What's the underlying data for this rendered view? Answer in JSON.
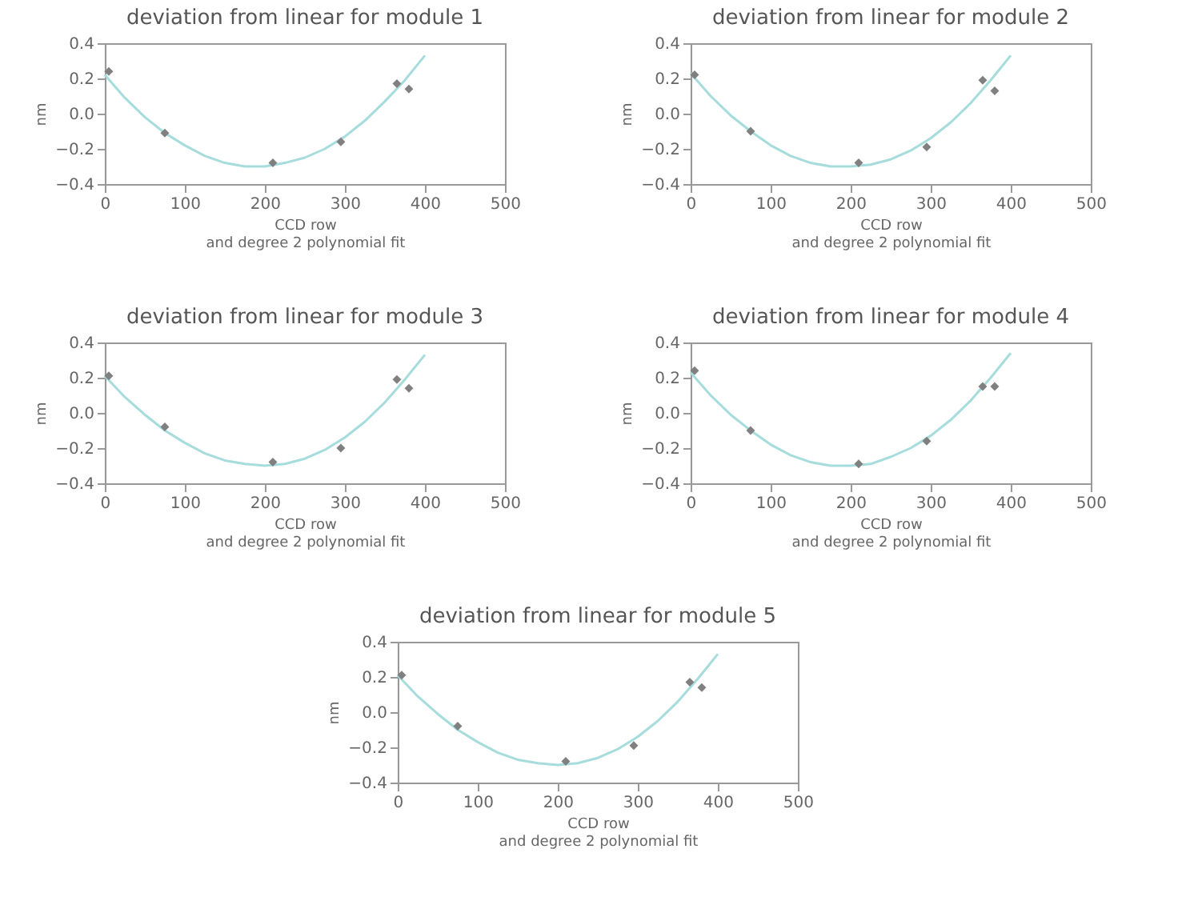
{
  "chart_data": [
    {
      "type": "scatter",
      "title": "deviation from linear for module 1",
      "xlabel": "CCD row\nand degree 2 polynomial fit",
      "ylabel": "nm",
      "grid": false,
      "xlim": [
        0,
        500
      ],
      "xticks": [
        0,
        100,
        200,
        300,
        400,
        500
      ],
      "ylim": [
        -0.4,
        0.4
      ],
      "yticks": [
        {
          "value": -0.4,
          "label": "−0.4"
        },
        {
          "value": -0.2,
          "label": "−0.2"
        },
        {
          "value": 0,
          "label": "0.0"
        },
        {
          "value": 0.2,
          "label": "0.2"
        },
        {
          "value": 0.4,
          "label": "0.4"
        }
      ],
      "series": [
        {
          "marker": "diamond",
          "color": "#808080",
          "x": [
            5,
            75,
            210,
            295,
            365,
            380
          ],
          "values": [
            0.24,
            -0.11,
            -0.28,
            -0.16,
            0.17,
            0.14
          ]
        },
        {
          "type": "line",
          "color": "#a6dcdc",
          "x": [
            0,
            25,
            50,
            75,
            100,
            125,
            150,
            175,
            200,
            225,
            250,
            275,
            300,
            325,
            350,
            375,
            400
          ],
          "values": [
            0.22,
            0.09,
            -0.02,
            -0.11,
            -0.18,
            -0.24,
            -0.28,
            -0.3,
            -0.3,
            -0.28,
            -0.25,
            -0.2,
            -0.13,
            -0.04,
            0.07,
            0.19,
            0.33
          ]
        }
      ]
    },
    {
      "type": "scatter",
      "title": "deviation from linear for module 2",
      "xlabel": "CCD row\nand degree 2 polynomial fit",
      "ylabel": "nm",
      "grid": false,
      "xlim": [
        0,
        500
      ],
      "xticks": [
        0,
        100,
        200,
        300,
        400,
        500
      ],
      "ylim": [
        -0.4,
        0.4
      ],
      "yticks": [
        {
          "value": -0.4,
          "label": "−0.4"
        },
        {
          "value": -0.2,
          "label": "−0.2"
        },
        {
          "value": 0,
          "label": "0.0"
        },
        {
          "value": 0.2,
          "label": "0.2"
        },
        {
          "value": 0.4,
          "label": "0.4"
        }
      ],
      "series": [
        {
          "marker": "diamond",
          "color": "#808080",
          "x": [
            5,
            75,
            210,
            295,
            365,
            380
          ],
          "values": [
            0.22,
            -0.1,
            -0.28,
            -0.19,
            0.19,
            0.13
          ]
        },
        {
          "type": "line",
          "color": "#a6dcdc",
          "x": [
            0,
            25,
            50,
            75,
            100,
            125,
            150,
            175,
            200,
            225,
            250,
            275,
            300,
            325,
            350,
            375,
            400
          ],
          "values": [
            0.23,
            0.1,
            -0.01,
            -0.1,
            -0.18,
            -0.24,
            -0.28,
            -0.3,
            -0.3,
            -0.29,
            -0.26,
            -0.21,
            -0.14,
            -0.05,
            0.06,
            0.19,
            0.33
          ]
        }
      ]
    },
    {
      "type": "scatter",
      "title": "deviation from linear for module 3",
      "xlabel": "CCD row\nand degree 2 polynomial fit",
      "ylabel": "nm",
      "grid": false,
      "xlim": [
        0,
        500
      ],
      "xticks": [
        0,
        100,
        200,
        300,
        400,
        500
      ],
      "ylim": [
        -0.4,
        0.4
      ],
      "yticks": [
        {
          "value": -0.4,
          "label": "−0.4"
        },
        {
          "value": -0.2,
          "label": "−0.2"
        },
        {
          "value": 0,
          "label": "0.0"
        },
        {
          "value": 0.2,
          "label": "0.2"
        },
        {
          "value": 0.4,
          "label": "0.4"
        }
      ],
      "series": [
        {
          "marker": "diamond",
          "color": "#808080",
          "x": [
            5,
            75,
            210,
            295,
            365,
            380
          ],
          "values": [
            0.21,
            -0.08,
            -0.28,
            -0.2,
            0.19,
            0.14
          ]
        },
        {
          "type": "line",
          "color": "#a6dcdc",
          "x": [
            0,
            25,
            50,
            75,
            100,
            125,
            150,
            175,
            200,
            225,
            250,
            275,
            300,
            325,
            350,
            375,
            400
          ],
          "values": [
            0.21,
            0.09,
            -0.01,
            -0.1,
            -0.17,
            -0.23,
            -0.27,
            -0.29,
            -0.3,
            -0.29,
            -0.26,
            -0.21,
            -0.14,
            -0.05,
            0.06,
            0.19,
            0.33
          ]
        }
      ]
    },
    {
      "type": "scatter",
      "title": "deviation from linear for module 4",
      "xlabel": "CCD row\nand degree 2 polynomial fit",
      "ylabel": "nm",
      "grid": false,
      "xlim": [
        0,
        500
      ],
      "xticks": [
        0,
        100,
        200,
        300,
        400,
        500
      ],
      "ylim": [
        -0.4,
        0.4
      ],
      "yticks": [
        {
          "value": -0.4,
          "label": "−0.4"
        },
        {
          "value": -0.2,
          "label": "−0.2"
        },
        {
          "value": 0,
          "label": "0.0"
        },
        {
          "value": 0.2,
          "label": "0.2"
        },
        {
          "value": 0.4,
          "label": "0.4"
        }
      ],
      "series": [
        {
          "marker": "diamond",
          "color": "#808080",
          "x": [
            5,
            75,
            210,
            295,
            365,
            380
          ],
          "values": [
            0.24,
            -0.1,
            -0.29,
            -0.16,
            0.15,
            0.15
          ]
        },
        {
          "type": "line",
          "color": "#a6dcdc",
          "x": [
            0,
            25,
            50,
            75,
            100,
            125,
            150,
            175,
            200,
            225,
            250,
            275,
            300,
            325,
            350,
            375,
            400
          ],
          "values": [
            0.23,
            0.1,
            -0.01,
            -0.1,
            -0.18,
            -0.24,
            -0.28,
            -0.3,
            -0.3,
            -0.29,
            -0.25,
            -0.2,
            -0.13,
            -0.04,
            0.07,
            0.2,
            0.34
          ]
        }
      ]
    },
    {
      "type": "scatter",
      "title": "deviation from linear for module 5",
      "xlabel": "CCD row\nand degree 2 polynomial fit",
      "ylabel": "nm",
      "grid": false,
      "xlim": [
        0,
        500
      ],
      "xticks": [
        0,
        100,
        200,
        300,
        400,
        500
      ],
      "ylim": [
        -0.4,
        0.4
      ],
      "yticks": [
        {
          "value": -0.4,
          "label": "−0.4"
        },
        {
          "value": -0.2,
          "label": "−0.2"
        },
        {
          "value": 0,
          "label": "0.0"
        },
        {
          "value": 0.2,
          "label": "0.2"
        },
        {
          "value": 0.4,
          "label": "0.4"
        }
      ],
      "series": [
        {
          "marker": "diamond",
          "color": "#808080",
          "x": [
            5,
            75,
            210,
            295,
            365,
            380
          ],
          "values": [
            0.21,
            -0.08,
            -0.28,
            -0.19,
            0.17,
            0.14
          ]
        },
        {
          "type": "line",
          "color": "#a6dcdc",
          "x": [
            0,
            25,
            50,
            75,
            100,
            125,
            150,
            175,
            200,
            225,
            250,
            275,
            300,
            325,
            350,
            375,
            400
          ],
          "values": [
            0.21,
            0.09,
            -0.01,
            -0.1,
            -0.17,
            -0.23,
            -0.27,
            -0.29,
            -0.3,
            -0.29,
            -0.26,
            -0.21,
            -0.14,
            -0.05,
            0.06,
            0.19,
            0.33
          ]
        }
      ]
    }
  ]
}
